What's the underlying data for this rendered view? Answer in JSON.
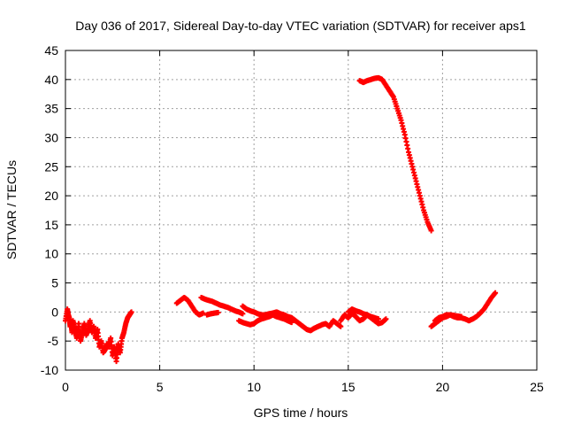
{
  "chart_data": {
    "type": "scatter",
    "title": "Day 036 of 2017, Sidereal Day-to-day VTEC variation (SDTVAR) for receiver aps1",
    "xlabel": "GPS time / hours",
    "ylabel": "SDTVAR / TECUs",
    "xlim": [
      0,
      25
    ],
    "ylim": [
      -10,
      45
    ],
    "xticks": [
      0,
      5,
      10,
      15,
      20,
      25
    ],
    "yticks": [
      -10,
      -5,
      0,
      5,
      10,
      15,
      20,
      25,
      30,
      35,
      40,
      45
    ],
    "grid": true,
    "marker": "+",
    "color": "#ff0000",
    "series": [
      {
        "name": "SDTVAR",
        "segments": [
          {
            "x": [
              0.0,
              0.1,
              0.15,
              0.2,
              0.25,
              0.3,
              0.35,
              0.4,
              0.5,
              0.6,
              0.7,
              0.8,
              0.9,
              1.0,
              1.1,
              1.2,
              1.3,
              1.4,
              1.5,
              1.6,
              1.7,
              1.8,
              1.9,
              2.0,
              2.1,
              2.2,
              2.3,
              2.4,
              2.5,
              2.6,
              2.7,
              2.8,
              2.9,
              3.0,
              3.1,
              3.2,
              3.3,
              3.4,
              3.5
            ],
            "y": [
              -1.5,
              0.5,
              -0.5,
              -1.0,
              -2.5,
              -2.0,
              -3.5,
              -1.5,
              -3.0,
              -4.5,
              -2.0,
              -5.0,
              -3.5,
              -2.0,
              -4.0,
              -3.0,
              -1.5,
              -3.5,
              -2.5,
              -4.5,
              -3.0,
              -6.0,
              -5.0,
              -7.0,
              -6.5,
              -5.5,
              -6.0,
              -4.5,
              -7.5,
              -6.0,
              -8.5,
              -5.5,
              -7.0,
              -4.5,
              -3.5,
              -2.0,
              -1.0,
              -0.5,
              0.0
            ]
          },
          {
            "x": [
              5.9,
              6.1,
              6.3,
              6.5,
              6.7,
              6.9,
              7.1,
              7.3
            ],
            "y": [
              1.5,
              2.0,
              2.5,
              2.0,
              1.0,
              0.0,
              -0.5,
              -0.2
            ]
          },
          {
            "x": [
              7.2,
              7.4,
              7.6,
              7.8,
              8.0,
              8.2,
              8.4,
              8.6,
              8.8,
              9.0,
              9.2,
              9.4
            ],
            "y": [
              2.5,
              2.2,
              2.0,
              1.8,
              1.5,
              1.2,
              1.0,
              0.8,
              0.5,
              0.2,
              0.0,
              -0.3
            ]
          },
          {
            "x": [
              7.5,
              7.7,
              7.9,
              8.1
            ],
            "y": [
              -0.5,
              -0.3,
              -0.2,
              -0.1
            ]
          },
          {
            "x": [
              9.4,
              9.6,
              9.8,
              10.0,
              10.2,
              10.4,
              10.6,
              10.8,
              11.0,
              11.2,
              11.4,
              11.6,
              11.8,
              12.0,
              12.2,
              12.4,
              12.6,
              12.8,
              13.0,
              13.2,
              13.4,
              13.6,
              13.8,
              14.0,
              14.2,
              14.4,
              14.6
            ],
            "y": [
              1.0,
              0.5,
              0.2,
              0.0,
              -0.3,
              -0.5,
              -0.5,
              -0.3,
              -0.2,
              0.0,
              -0.3,
              -0.5,
              -0.8,
              -1.0,
              -1.5,
              -2.0,
              -2.5,
              -3.0,
              -3.2,
              -2.8,
              -2.5,
              -2.2,
              -2.0,
              -2.5,
              -1.5,
              -2.0,
              -2.5
            ]
          },
          {
            "x": [
              9.2,
              9.4,
              9.6,
              9.8,
              10.0,
              10.2,
              10.4,
              10.6,
              10.8,
              11.0,
              11.2,
              11.4,
              11.6,
              11.8,
              12.0
            ],
            "y": [
              -1.5,
              -1.8,
              -2.0,
              -2.2,
              -2.0,
              -1.5,
              -1.2,
              -1.0,
              -0.8,
              -0.5,
              -0.8,
              -1.0,
              -1.2,
              -1.5,
              -1.8
            ]
          },
          {
            "x": [
              14.6,
              14.8,
              15.0,
              15.2,
              15.4,
              15.6,
              15.8,
              16.0,
              16.2,
              16.4,
              16.6,
              16.8,
              17.0
            ],
            "y": [
              -1.5,
              -0.5,
              -1.0,
              -0.2,
              -0.8,
              -1.5,
              -1.2,
              -0.5,
              -1.0,
              -1.5,
              -2.0,
              -1.8,
              -1.2
            ]
          },
          {
            "x": [
              15.0,
              15.2,
              15.4,
              15.6,
              15.8,
              16.0,
              16.2,
              16.4,
              16.6
            ],
            "y": [
              0.0,
              0.5,
              0.2,
              0.0,
              -0.3,
              -0.5,
              -0.8,
              -1.0,
              -1.2
            ]
          },
          {
            "x": [
              15.6,
              15.8,
              16.0,
              16.2,
              16.4,
              16.6,
              16.8,
              17.0,
              17.2,
              17.4,
              17.6,
              17.8,
              18.0,
              18.2,
              18.4,
              18.6,
              18.8,
              19.0,
              19.2,
              19.4
            ],
            "y": [
              39.8,
              39.5,
              39.8,
              40.0,
              40.2,
              40.3,
              40.0,
              39.0,
              38.0,
              37.0,
              35.0,
              33.0,
              30.5,
              27.5,
              25.0,
              22.5,
              20.0,
              17.5,
              15.5,
              14.0
            ]
          },
          {
            "x": [
              19.4,
              19.6,
              19.8,
              20.0,
              20.2,
              20.4,
              20.6,
              20.8,
              21.0,
              21.2,
              21.4,
              21.6,
              21.8,
              22.0,
              22.2,
              22.4,
              22.6,
              22.8
            ],
            "y": [
              -2.5,
              -2.0,
              -1.5,
              -1.0,
              -0.8,
              -0.5,
              -0.8,
              -1.0,
              -1.0,
              -1.2,
              -1.5,
              -1.2,
              -0.8,
              -0.2,
              0.5,
              1.5,
              2.5,
              3.3
            ]
          },
          {
            "x": [
              19.6,
              19.8,
              20.0,
              20.2,
              20.4,
              20.6,
              20.8,
              21.0
            ],
            "y": [
              -1.5,
              -1.0,
              -0.8,
              -0.5,
              -0.5,
              -0.6,
              -0.7,
              -0.8
            ]
          }
        ]
      }
    ]
  }
}
